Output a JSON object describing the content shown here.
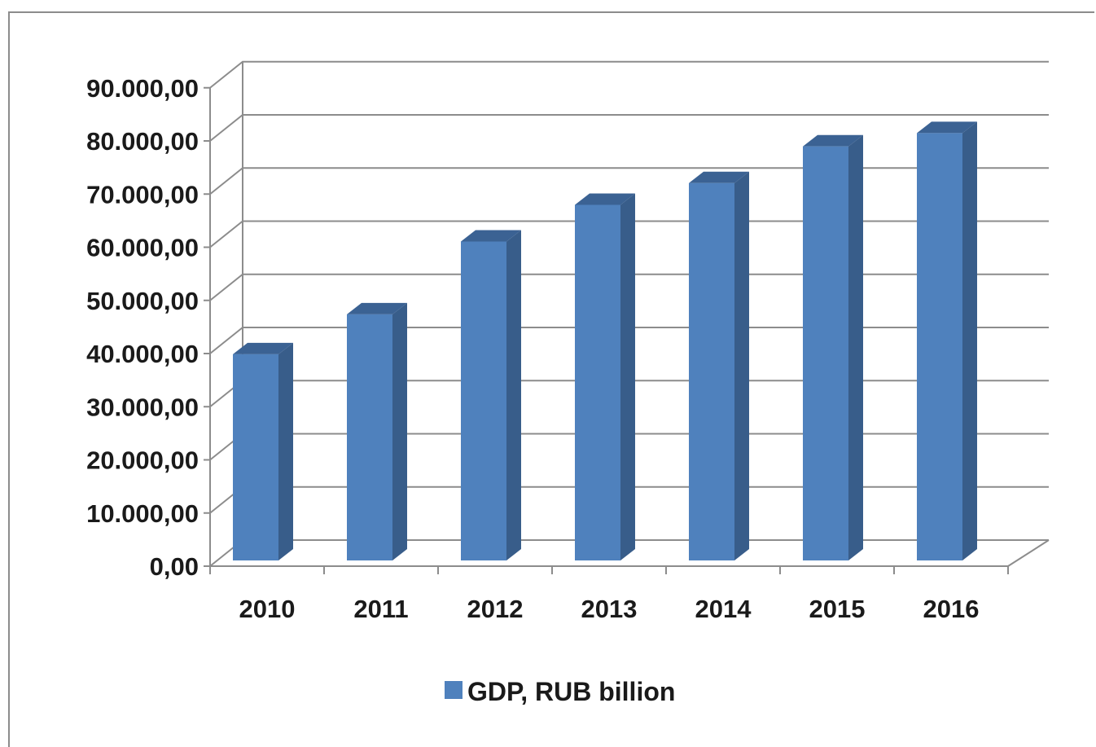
{
  "chart_data": {
    "type": "bar",
    "style": "3d-column",
    "categories": [
      "2010",
      "2011",
      "2012",
      "2013",
      "2014",
      "2015",
      "2016"
    ],
    "series": [
      {
        "name": "GDP, RUB billion",
        "values": [
          38800,
          46300,
          60000,
          66900,
          71000,
          77900,
          80400
        ],
        "color": "#4f81bd"
      }
    ],
    "yticks": [
      "0,00",
      "10.000,00",
      "20.000,00",
      "30.000,00",
      "40.000,00",
      "50.000,00",
      "60.000,00",
      "70.000,00",
      "80.000,00",
      "90.000,00"
    ],
    "ylim": [
      0,
      90000
    ],
    "grid": true,
    "legend": "bottom",
    "title": "",
    "xlabel": "",
    "ylabel": ""
  },
  "colors": {
    "bar_front": "#4f81bd",
    "bar_side": "#385d8a",
    "bar_top": "#3b6293",
    "grid": "#8c8c8c",
    "text": "#1a1a1a"
  }
}
